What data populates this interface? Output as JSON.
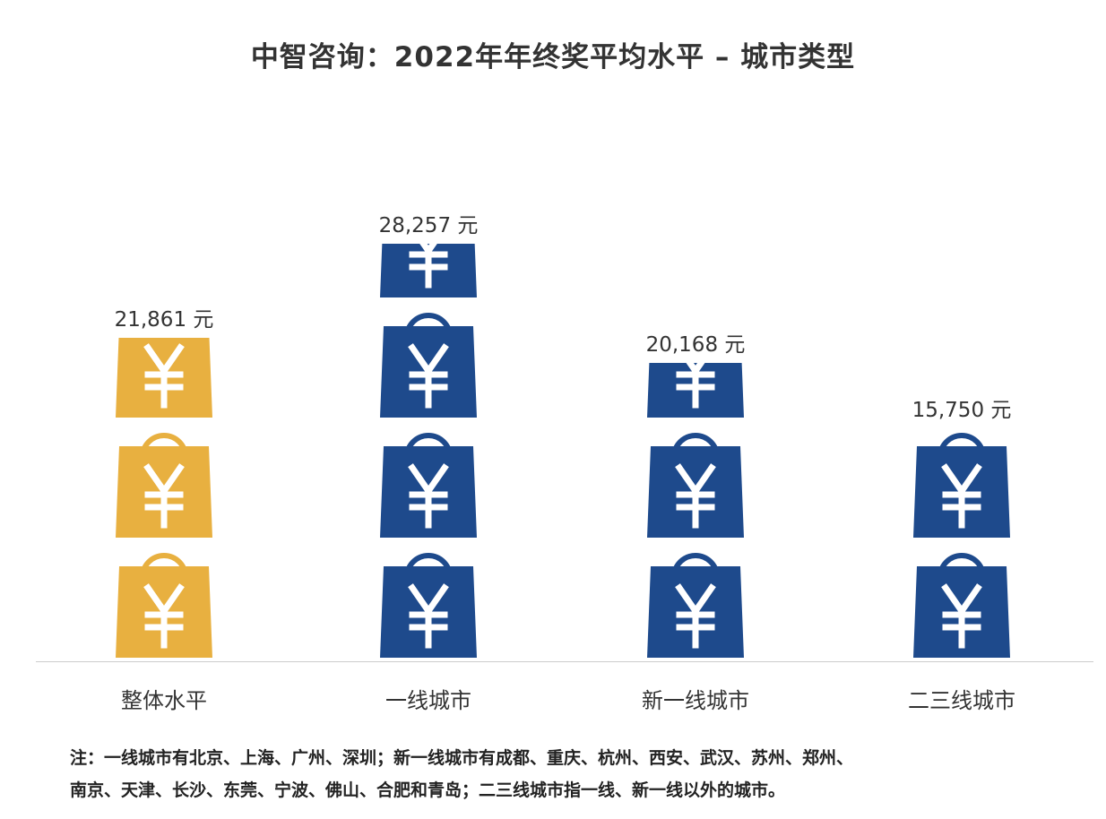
{
  "chart_data": {
    "type": "bar",
    "style": "pictograph",
    "title": "中智咨询：2022年年终奖平均水平  –  城市类型",
    "categories": [
      "整体水平",
      "一线城市",
      "新一线城市",
      "二三线城市"
    ],
    "values": [
      21861,
      28257,
      20168,
      15750
    ],
    "value_labels": [
      "21,861 元",
      "28,257 元",
      "20,168 元",
      "15,750 元"
    ],
    "unit": "元",
    "colors": [
      "#E8B040",
      "#1E4A8C",
      "#1E4A8C",
      "#1E4A8C"
    ],
    "icon": "yen-shopping-bag-icon",
    "xlabel": "",
    "ylabel": "",
    "grid": false,
    "note": [
      "注：一线城市有北京、上海、广州、深圳；新一线城市有成都、重庆、杭州、西安、武汉、苏州、郑州、",
      "南京、天津、长沙、东莞、宁波、佛山、合肥和青岛；二三线城市指一线、新一线以外的城市。"
    ]
  }
}
